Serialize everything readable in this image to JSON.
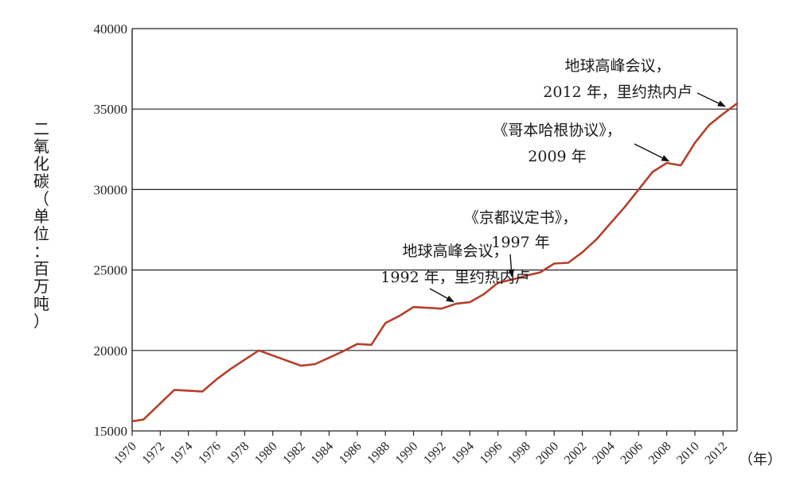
{
  "chart_data": {
    "type": "line",
    "ylabel_chars": [
      "二",
      "氧",
      "化",
      "碳",
      "（",
      "单",
      "位",
      "：",
      "百",
      "万",
      "吨",
      "）"
    ],
    "x_unit_label": "（年）",
    "ylim": [
      15000,
      40000
    ],
    "xlim": [
      1970,
      2013
    ],
    "yticks": [
      15000,
      20000,
      25000,
      30000,
      35000,
      40000
    ],
    "ytick_labels": [
      "15000",
      "20000",
      "25000",
      "30000",
      "35000",
      "40000"
    ],
    "xticks": [
      1970,
      1972,
      1974,
      1976,
      1978,
      1980,
      1982,
      1984,
      1986,
      1988,
      1990,
      1992,
      1994,
      1996,
      1998,
      2000,
      2002,
      2004,
      2006,
      2008,
      2010,
      2012
    ],
    "xtick_labels": [
      "1970",
      "1972",
      "1974",
      "1976",
      "1978",
      "1980",
      "1982",
      "1984",
      "1986",
      "1988",
      "1990",
      "1992",
      "1994",
      "1996",
      "1998",
      "2000",
      "2002",
      "2004",
      "2006",
      "2008",
      "2010",
      "2012"
    ],
    "grid": "horizontal",
    "line_color": "#b5402a",
    "series": [
      {
        "x": [
          1970,
          1970.8,
          1973,
          1975,
          1976,
          1977,
          1979,
          1982,
          1983,
          1984,
          1985,
          1986,
          1987,
          1988,
          1989,
          1990,
          1991,
          1992,
          1993,
          1994,
          1995,
          1996,
          1997,
          1998,
          1999,
          2000,
          2001,
          2002,
          2003,
          2004,
          2005,
          2006,
          2007,
          2008,
          2009,
          2010,
          2011,
          2012,
          2013
        ],
        "values": [
          15600,
          15700,
          17550,
          17450,
          18200,
          18850,
          20000,
          19050,
          19150,
          19550,
          19950,
          20400,
          20350,
          21700,
          22150,
          22700,
          22650,
          22600,
          22900,
          23000,
          23500,
          24200,
          24400,
          24650,
          24850,
          25400,
          25450,
          26100,
          26900,
          27900,
          28900,
          30000,
          31100,
          31650,
          31500,
          32900,
          34000,
          34700,
          35350
        ]
      }
    ],
    "annotations": [
      {
        "lines": [
          "地球高峰会议，",
          "1992 年，里约热内卢"
        ],
        "x": 1993,
        "y": 22950
      },
      {
        "lines": [
          "《京都议定书》，",
          "1997 年"
        ],
        "x": 1997,
        "y": 24450
      },
      {
        "lines": [
          "《哥本哈根协议》，",
          "2009 年"
        ],
        "x": 2008.3,
        "y": 31700
      },
      {
        "lines": [
          "地球高峰会议，",
          "2012 年，里约热内卢"
        ],
        "x": 2012.3,
        "y": 35100
      }
    ]
  }
}
